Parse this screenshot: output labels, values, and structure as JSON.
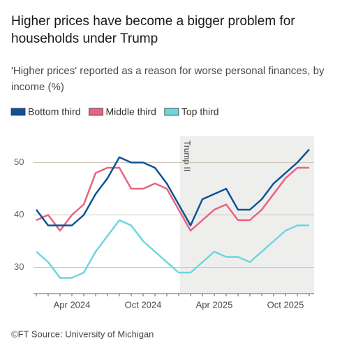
{
  "chart_data": {
    "type": "line",
    "title": "Higher prices have become a bigger problem for households under Trump",
    "subtitle": "'Higher prices' reported as a reason for worse personal finances, by income (%)",
    "source": "©FT Source: University of Michigan",
    "categories": [
      null,
      null,
      null,
      "Apr 2024",
      null,
      null,
      null,
      null,
      null,
      "Oct 2024",
      null,
      null,
      null,
      null,
      null,
      "Apr 2025",
      null,
      null,
      null,
      null,
      null,
      "Oct 2025",
      null,
      null
    ],
    "series": [
      {
        "name": "Bottom third",
        "color": "#0d5396",
        "values": [
          41,
          38,
          38,
          38,
          40,
          44,
          47,
          51,
          50,
          50,
          49,
          46,
          42,
          38,
          43,
          44,
          45,
          41,
          41,
          43,
          46,
          48,
          50,
          52.5
        ]
      },
      {
        "name": "Middle third",
        "color": "#e8637f",
        "values": [
          39,
          40,
          37,
          40,
          42,
          48,
          49,
          49,
          45,
          45,
          46,
          45,
          41,
          37,
          39,
          41,
          42,
          39,
          39,
          41,
          44,
          47,
          49,
          49
        ]
      },
      {
        "name": "Top third",
        "color": "#6dd6df",
        "values": [
          33,
          31,
          28,
          28,
          29,
          33,
          36,
          39,
          38,
          35,
          33,
          31,
          29,
          29,
          31,
          33,
          32,
          32,
          31,
          33,
          35,
          37,
          38,
          38
        ]
      }
    ],
    "annotation": {
      "text": "Trump II",
      "x": 12
    },
    "ylim": [
      25,
      55
    ],
    "yticks": [
      30,
      40,
      50
    ],
    "grid": true
  }
}
